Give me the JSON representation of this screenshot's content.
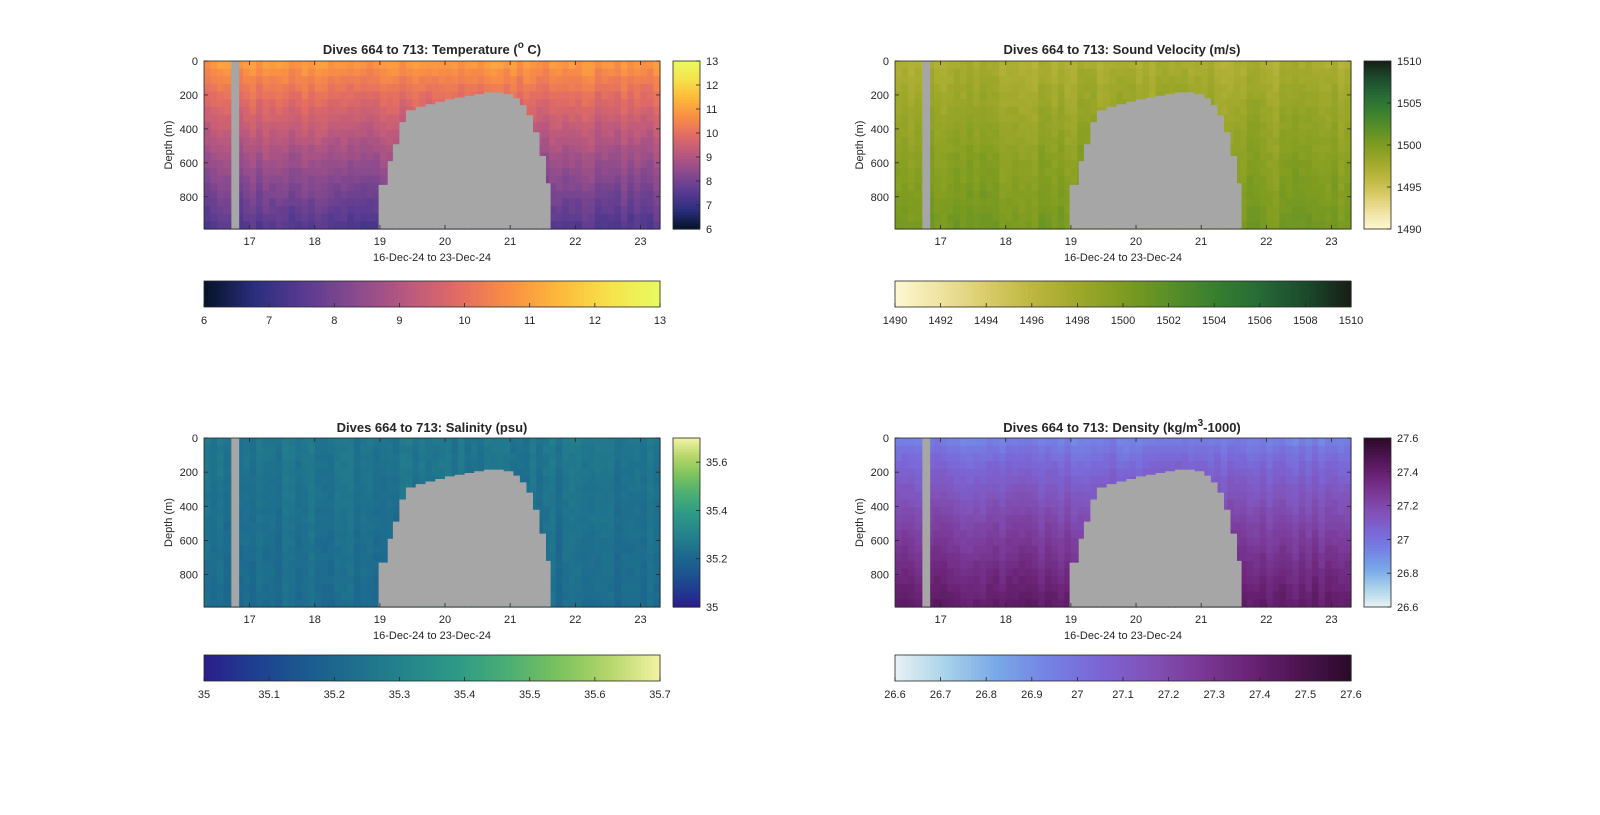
{
  "figure": {
    "background": "#ffffff",
    "mask_color": "#a6a6a6"
  },
  "chart_data": [
    {
      "id": "temperature",
      "type": "heatmap",
      "title": "Dives 664 to 713: Temperature (",
      "title_super": "o",
      "title_tail": " C)",
      "xlabel": "16-Dec-24 to 23-Dec-24",
      "ylabel": "Depth (m)",
      "xlim": [
        16.3,
        23.3
      ],
      "ylim": [
        0,
        990
      ],
      "y_reversed": true,
      "xticks": [
        17,
        18,
        19,
        20,
        21,
        22,
        23
      ],
      "yticks": [
        0,
        200,
        400,
        600,
        800
      ],
      "clim": [
        6,
        13
      ],
      "cb_side_ticks": [
        "6",
        "7",
        "8",
        "9",
        "10",
        "11",
        "12",
        "13"
      ],
      "cb_bottom_ticks": [
        "6",
        "7",
        "8",
        "9",
        "10",
        "11",
        "12",
        "13"
      ],
      "colormap": [
        "#031326",
        "#2b2e7e",
        "#5a3b91",
        "#8a4a8e",
        "#b9587f",
        "#e16b65",
        "#f98e45",
        "#fdb83b",
        "#f6e24a",
        "#e9fb62"
      ],
      "surface_value": 11.0,
      "bottom_value": 7.4,
      "data_gap": [
        16.72,
        16.84
      ]
    },
    {
      "id": "sound-velocity",
      "type": "heatmap",
      "title": "Dives 664 to 713: Sound Velocity (m/s)",
      "title_super": "",
      "title_tail": "",
      "xlabel": "16-Dec-24 to 23-Dec-24",
      "ylabel": "Depth (m)",
      "xlim": [
        16.3,
        23.3
      ],
      "ylim": [
        0,
        990
      ],
      "y_reversed": true,
      "xticks": [
        17,
        18,
        19,
        20,
        21,
        22,
        23
      ],
      "yticks": [
        0,
        200,
        400,
        600,
        800
      ],
      "clim": [
        1490,
        1510
      ],
      "cb_side_ticks": [
        "1490",
        "1495",
        "1500",
        "1505",
        "1510"
      ],
      "cb_bottom_ticks": [
        "1490",
        "1492",
        "1494",
        "1496",
        "1498",
        "1500",
        "1502",
        "1504",
        "1506",
        "1508",
        "1510"
      ],
      "colormap": [
        "#fdf8d2",
        "#efe3a0",
        "#d9cc6a",
        "#bdb73f",
        "#9fa82a",
        "#7e9c20",
        "#5a8f28",
        "#38802f",
        "#266a36",
        "#1c4a2c",
        "#161e14"
      ],
      "surface_value": 1497.0,
      "bottom_value": 1500.5,
      "data_gap": [
        16.72,
        16.84
      ]
    },
    {
      "id": "salinity",
      "type": "heatmap",
      "title": "Dives 664 to 713: Salinity (psu)",
      "title_super": "",
      "title_tail": "",
      "xlabel": "16-Dec-24 to 23-Dec-24",
      "ylabel": "Depth (m)",
      "xlim": [
        16.3,
        23.3
      ],
      "ylim": [
        0,
        990
      ],
      "y_reversed": true,
      "xticks": [
        17,
        18,
        19,
        20,
        21,
        22,
        23
      ],
      "yticks": [
        0,
        200,
        400,
        600,
        800
      ],
      "clim": [
        35,
        35.7
      ],
      "cb_side_ticks": [
        "35",
        "35.2",
        "35.4",
        "35.6"
      ],
      "cb_bottom_ticks": [
        "35",
        "35.1",
        "35.2",
        "35.3",
        "35.4",
        "35.5",
        "35.6",
        "35.7"
      ],
      "colormap": [
        "#2a1e8a",
        "#1f3f91",
        "#1b5a8f",
        "#1e6f8e",
        "#25858c",
        "#2e9a86",
        "#4aae74",
        "#7bc25d",
        "#b5d66a",
        "#f4f2a4"
      ],
      "surface_value": 35.26,
      "bottom_value": 35.22,
      "data_gap": [
        16.72,
        16.84
      ]
    },
    {
      "id": "density",
      "type": "heatmap",
      "title": "Dives 664 to 713: Density (kg/m",
      "title_super": "3",
      "title_tail": "-1000)",
      "xlabel": "16-Dec-24 to 23-Dec-24",
      "ylabel": "Depth (m)",
      "xlim": [
        16.3,
        23.3
      ],
      "ylim": [
        0,
        990
      ],
      "y_reversed": true,
      "xticks": [
        17,
        18,
        19,
        20,
        21,
        22,
        23
      ],
      "yticks": [
        0,
        200,
        400,
        600,
        800
      ],
      "clim": [
        26.6,
        27.6
      ],
      "cb_side_ticks": [
        "26.6",
        "26.8",
        "27",
        "27.2",
        "27.4",
        "27.6"
      ],
      "cb_bottom_ticks": [
        "26.6",
        "26.7",
        "26.8",
        "26.9",
        "27",
        "27.1",
        "27.2",
        "27.3",
        "27.4",
        "27.5",
        "27.6"
      ],
      "colormap": [
        "#e8f2f4",
        "#a9d2ea",
        "#79a8e8",
        "#7483e4",
        "#7b66d6",
        "#8152b8",
        "#7b3a98",
        "#6a2375",
        "#4c1450",
        "#2a0a28"
      ],
      "surface_value": 26.93,
      "bottom_value": 27.42,
      "data_gap": [
        16.72,
        16.84
      ]
    }
  ],
  "masked_region": {
    "profile": [
      [
        18.98,
        730
      ],
      [
        19.12,
        590
      ],
      [
        19.2,
        490
      ],
      [
        19.3,
        360
      ],
      [
        19.4,
        290
      ],
      [
        19.55,
        270
      ],
      [
        19.7,
        255
      ],
      [
        19.85,
        240
      ],
      [
        20.0,
        225
      ],
      [
        20.15,
        215
      ],
      [
        20.3,
        205
      ],
      [
        20.45,
        195
      ],
      [
        20.6,
        185
      ],
      [
        20.75,
        185
      ],
      [
        20.9,
        195
      ],
      [
        21.05,
        220
      ],
      [
        21.15,
        260
      ],
      [
        21.25,
        320
      ],
      [
        21.35,
        420
      ],
      [
        21.45,
        560
      ],
      [
        21.55,
        720
      ],
      [
        21.62,
        990
      ]
    ]
  }
}
